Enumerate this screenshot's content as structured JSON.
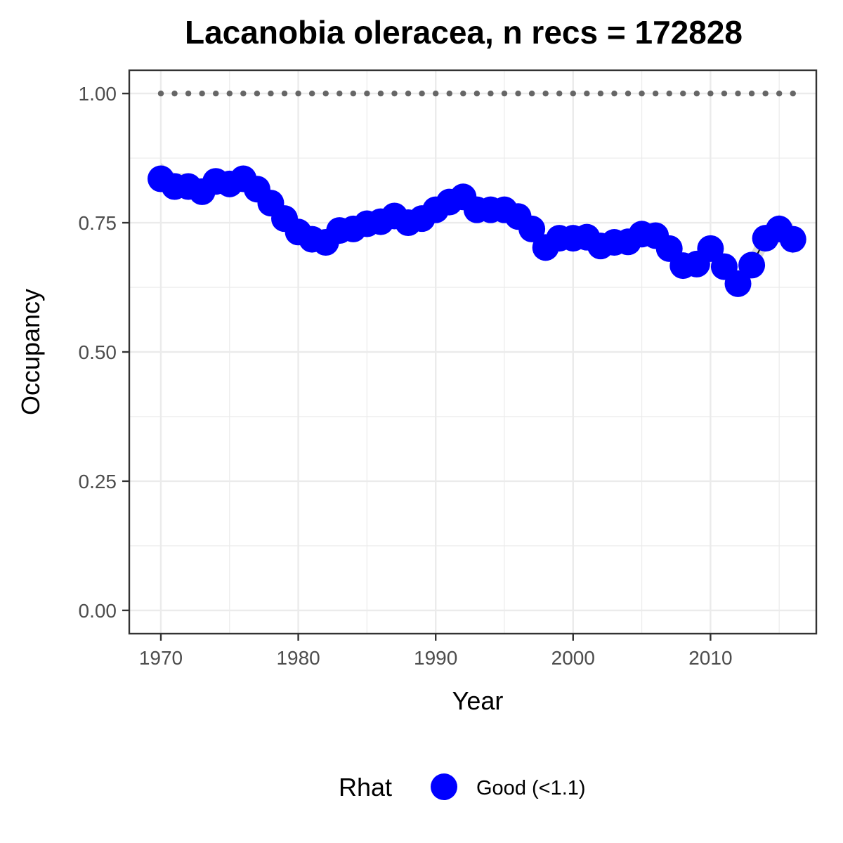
{
  "chart_data": {
    "type": "line",
    "title": "Lacanobia oleracea, n recs = 172828",
    "xlabel": "Year",
    "ylabel": "Occupancy",
    "xlim": [
      1967.7,
      2017.7
    ],
    "ylim": [
      -0.045,
      1.045
    ],
    "x_ticks": [
      1970,
      1980,
      1990,
      2000,
      2010
    ],
    "y_ticks": [
      0.0,
      0.25,
      0.5,
      0.75,
      1.0
    ],
    "x_tick_labels": [
      "1970",
      "1980",
      "1990",
      "2000",
      "2010"
    ],
    "y_tick_labels": [
      "0.00",
      "0.25",
      "0.50",
      "0.75",
      "1.00"
    ],
    "grid": true,
    "x": [
      1970,
      1971,
      1972,
      1973,
      1974,
      1975,
      1976,
      1977,
      1978,
      1979,
      1980,
      1981,
      1982,
      1983,
      1984,
      1985,
      1986,
      1987,
      1988,
      1989,
      1990,
      1991,
      1992,
      1993,
      1994,
      1995,
      1996,
      1997,
      1998,
      1999,
      2000,
      2001,
      2002,
      2003,
      2004,
      2005,
      2006,
      2007,
      2008,
      2009,
      2010,
      2011,
      2012,
      2013,
      2014,
      2015,
      2016
    ],
    "series": [
      {
        "name": "Good (<1.1)",
        "color": "#0000ff",
        "values": [
          0.835,
          0.82,
          0.82,
          0.81,
          0.83,
          0.825,
          0.835,
          0.815,
          0.788,
          0.758,
          0.732,
          0.718,
          0.712,
          0.735,
          0.738,
          0.748,
          0.752,
          0.763,
          0.75,
          0.758,
          0.775,
          0.79,
          0.8,
          0.775,
          0.775,
          0.775,
          0.762,
          0.738,
          0.702,
          0.72,
          0.72,
          0.722,
          0.705,
          0.712,
          0.713,
          0.728,
          0.725,
          0.7,
          0.667,
          0.67,
          0.7,
          0.665,
          0.632,
          0.668,
          0.72,
          0.738,
          0.718
        ],
        "lower": [
          0.812,
          0.8,
          0.8,
          0.792,
          0.81,
          0.805,
          0.814,
          0.794,
          0.766,
          0.735,
          0.708,
          0.695,
          0.69,
          0.714,
          0.717,
          0.727,
          0.731,
          0.742,
          0.729,
          0.738,
          0.755,
          0.77,
          0.78,
          0.756,
          0.755,
          0.755,
          0.742,
          0.718,
          0.683,
          0.701,
          0.701,
          0.703,
          0.686,
          0.693,
          0.694,
          0.708,
          0.704,
          0.679,
          0.645,
          0.648,
          0.678,
          0.642,
          0.608,
          0.644,
          0.695,
          0.712,
          0.69
        ],
        "upper": [
          0.866,
          0.846,
          0.845,
          0.834,
          0.853,
          0.848,
          0.858,
          0.838,
          0.812,
          0.782,
          0.757,
          0.742,
          0.736,
          0.758,
          0.761,
          0.771,
          0.775,
          0.786,
          0.773,
          0.78,
          0.797,
          0.812,
          0.822,
          0.797,
          0.797,
          0.797,
          0.784,
          0.76,
          0.724,
          0.742,
          0.742,
          0.744,
          0.727,
          0.734,
          0.735,
          0.75,
          0.748,
          0.723,
          0.69,
          0.694,
          0.724,
          0.69,
          0.658,
          0.694,
          0.746,
          0.766,
          0.748
        ]
      }
    ],
    "reference_line": {
      "y": 1.0,
      "color": "#666666",
      "style": "dotted"
    },
    "legend": {
      "title": "Rhat",
      "position": "bottom",
      "entries": [
        "Good (<1.1)"
      ]
    },
    "colors": {
      "points": "#0000ff",
      "ribbon": "#d3d3d3",
      "grid": "#ebebeb",
      "panel_border": "#333333",
      "tick_text": "#4d4d4d"
    }
  }
}
